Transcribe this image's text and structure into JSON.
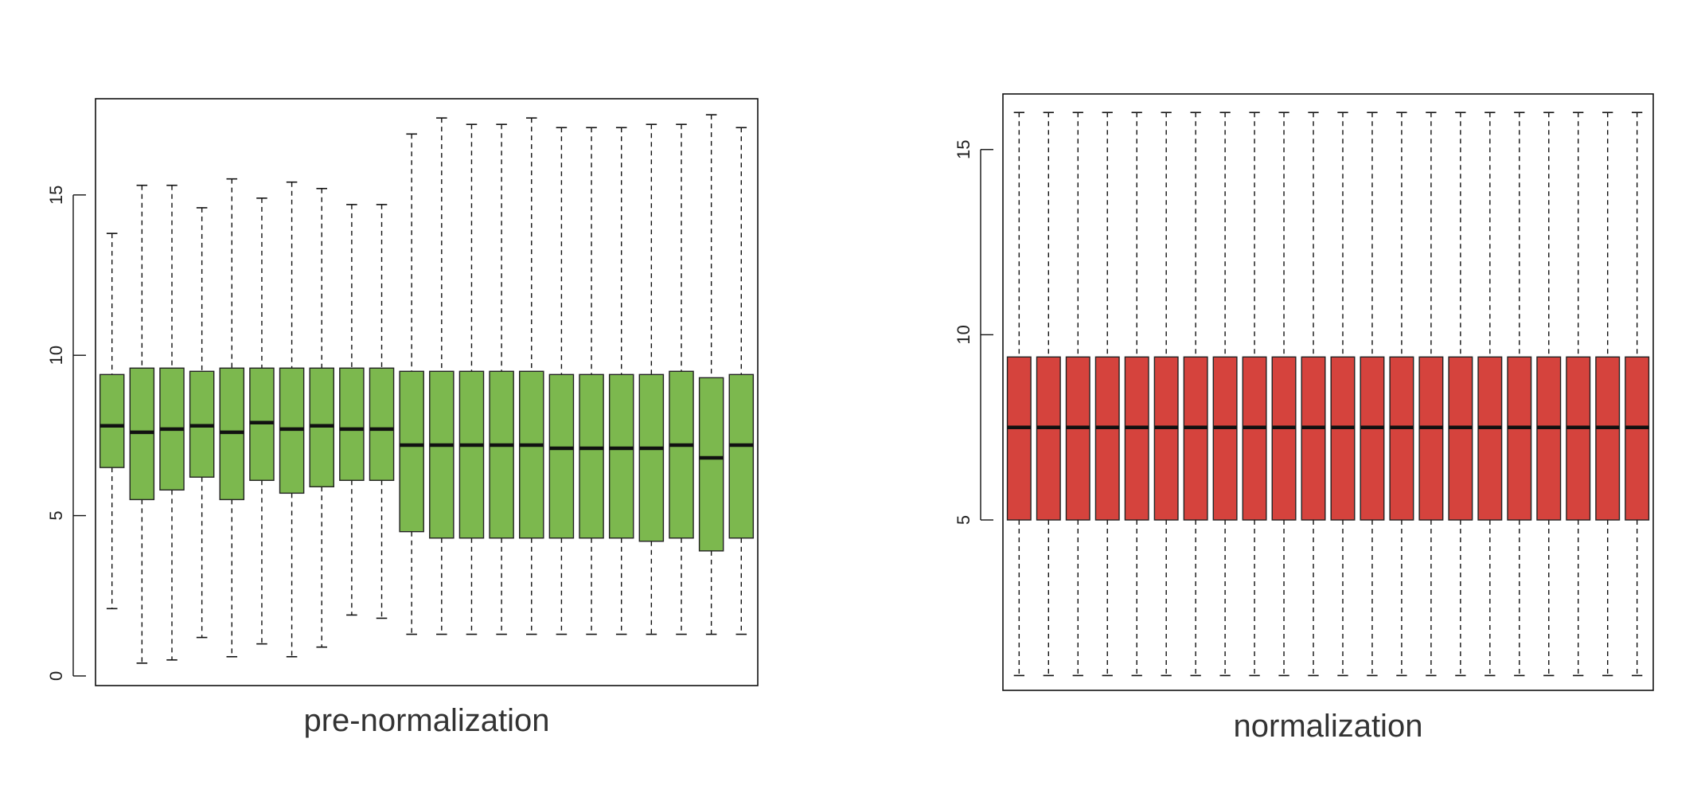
{
  "chart_data": [
    {
      "type": "boxplot",
      "xlabel": "pre-normalization",
      "ylabel": "",
      "yticks": [
        "0",
        "5",
        "10",
        "15"
      ],
      "ylim": [
        -0.3,
        18
      ],
      "grid": false,
      "fill_color": "#7cb84e",
      "boxes": [
        {
          "whisker_low": 2.1,
          "q1": 6.5,
          "median": 7.8,
          "q3": 9.4,
          "whisker_high": 13.8
        },
        {
          "whisker_low": 0.4,
          "q1": 5.5,
          "median": 7.6,
          "q3": 9.6,
          "whisker_high": 15.3
        },
        {
          "whisker_low": 0.5,
          "q1": 5.8,
          "median": 7.7,
          "q3": 9.6,
          "whisker_high": 15.3
        },
        {
          "whisker_low": 1.2,
          "q1": 6.2,
          "median": 7.8,
          "q3": 9.5,
          "whisker_high": 14.6
        },
        {
          "whisker_low": 0.6,
          "q1": 5.5,
          "median": 7.6,
          "q3": 9.6,
          "whisker_high": 15.5
        },
        {
          "whisker_low": 1.0,
          "q1": 6.1,
          "median": 7.9,
          "q3": 9.6,
          "whisker_high": 14.9
        },
        {
          "whisker_low": 0.6,
          "q1": 5.7,
          "median": 7.7,
          "q3": 9.6,
          "whisker_high": 15.4
        },
        {
          "whisker_low": 0.9,
          "q1": 5.9,
          "median": 7.8,
          "q3": 9.6,
          "whisker_high": 15.2
        },
        {
          "whisker_low": 1.9,
          "q1": 6.1,
          "median": 7.7,
          "q3": 9.6,
          "whisker_high": 14.7
        },
        {
          "whisker_low": 1.8,
          "q1": 6.1,
          "median": 7.7,
          "q3": 9.6,
          "whisker_high": 14.7
        },
        {
          "whisker_low": 1.3,
          "q1": 4.5,
          "median": 7.2,
          "q3": 9.5,
          "whisker_high": 16.9
        },
        {
          "whisker_low": 1.3,
          "q1": 4.3,
          "median": 7.2,
          "q3": 9.5,
          "whisker_high": 17.4
        },
        {
          "whisker_low": 1.3,
          "q1": 4.3,
          "median": 7.2,
          "q3": 9.5,
          "whisker_high": 17.2
        },
        {
          "whisker_low": 1.3,
          "q1": 4.3,
          "median": 7.2,
          "q3": 9.5,
          "whisker_high": 17.2
        },
        {
          "whisker_low": 1.3,
          "q1": 4.3,
          "median": 7.2,
          "q3": 9.5,
          "whisker_high": 17.4
        },
        {
          "whisker_low": 1.3,
          "q1": 4.3,
          "median": 7.1,
          "q3": 9.4,
          "whisker_high": 17.1
        },
        {
          "whisker_low": 1.3,
          "q1": 4.3,
          "median": 7.1,
          "q3": 9.4,
          "whisker_high": 17.1
        },
        {
          "whisker_low": 1.3,
          "q1": 4.3,
          "median": 7.1,
          "q3": 9.4,
          "whisker_high": 17.1
        },
        {
          "whisker_low": 1.3,
          "q1": 4.2,
          "median": 7.1,
          "q3": 9.4,
          "whisker_high": 17.2
        },
        {
          "whisker_low": 1.3,
          "q1": 4.3,
          "median": 7.2,
          "q3": 9.5,
          "whisker_high": 17.2
        },
        {
          "whisker_low": 1.3,
          "q1": 3.9,
          "median": 6.8,
          "q3": 9.3,
          "whisker_high": 17.5
        },
        {
          "whisker_low": 1.3,
          "q1": 4.3,
          "median": 7.2,
          "q3": 9.4,
          "whisker_high": 17.1
        }
      ]
    },
    {
      "type": "boxplot",
      "xlabel": "normalization",
      "ylabel": "",
      "yticks": [
        "5",
        "10",
        "15"
      ],
      "ylim": [
        0.4,
        16.5
      ],
      "grid": false,
      "fill_color": "#d5433d",
      "boxes": [
        {
          "whisker_low": 0.8,
          "q1": 5.0,
          "median": 7.5,
          "q3": 9.4,
          "whisker_high": 16.0
        },
        {
          "whisker_low": 0.8,
          "q1": 5.0,
          "median": 7.5,
          "q3": 9.4,
          "whisker_high": 16.0
        },
        {
          "whisker_low": 0.8,
          "q1": 5.0,
          "median": 7.5,
          "q3": 9.4,
          "whisker_high": 16.0
        },
        {
          "whisker_low": 0.8,
          "q1": 5.0,
          "median": 7.5,
          "q3": 9.4,
          "whisker_high": 16.0
        },
        {
          "whisker_low": 0.8,
          "q1": 5.0,
          "median": 7.5,
          "q3": 9.4,
          "whisker_high": 16.0
        },
        {
          "whisker_low": 0.8,
          "q1": 5.0,
          "median": 7.5,
          "q3": 9.4,
          "whisker_high": 16.0
        },
        {
          "whisker_low": 0.8,
          "q1": 5.0,
          "median": 7.5,
          "q3": 9.4,
          "whisker_high": 16.0
        },
        {
          "whisker_low": 0.8,
          "q1": 5.0,
          "median": 7.5,
          "q3": 9.4,
          "whisker_high": 16.0
        },
        {
          "whisker_low": 0.8,
          "q1": 5.0,
          "median": 7.5,
          "q3": 9.4,
          "whisker_high": 16.0
        },
        {
          "whisker_low": 0.8,
          "q1": 5.0,
          "median": 7.5,
          "q3": 9.4,
          "whisker_high": 16.0
        },
        {
          "whisker_low": 0.8,
          "q1": 5.0,
          "median": 7.5,
          "q3": 9.4,
          "whisker_high": 16.0
        },
        {
          "whisker_low": 0.8,
          "q1": 5.0,
          "median": 7.5,
          "q3": 9.4,
          "whisker_high": 16.0
        },
        {
          "whisker_low": 0.8,
          "q1": 5.0,
          "median": 7.5,
          "q3": 9.4,
          "whisker_high": 16.0
        },
        {
          "whisker_low": 0.8,
          "q1": 5.0,
          "median": 7.5,
          "q3": 9.4,
          "whisker_high": 16.0
        },
        {
          "whisker_low": 0.8,
          "q1": 5.0,
          "median": 7.5,
          "q3": 9.4,
          "whisker_high": 16.0
        },
        {
          "whisker_low": 0.8,
          "q1": 5.0,
          "median": 7.5,
          "q3": 9.4,
          "whisker_high": 16.0
        },
        {
          "whisker_low": 0.8,
          "q1": 5.0,
          "median": 7.5,
          "q3": 9.4,
          "whisker_high": 16.0
        },
        {
          "whisker_low": 0.8,
          "q1": 5.0,
          "median": 7.5,
          "q3": 9.4,
          "whisker_high": 16.0
        },
        {
          "whisker_low": 0.8,
          "q1": 5.0,
          "median": 7.5,
          "q3": 9.4,
          "whisker_high": 16.0
        },
        {
          "whisker_low": 0.8,
          "q1": 5.0,
          "median": 7.5,
          "q3": 9.4,
          "whisker_high": 16.0
        },
        {
          "whisker_low": 0.8,
          "q1": 5.0,
          "median": 7.5,
          "q3": 9.4,
          "whisker_high": 16.0
        },
        {
          "whisker_low": 0.8,
          "q1": 5.0,
          "median": 7.5,
          "q3": 9.4,
          "whisker_high": 16.0
        }
      ]
    }
  ]
}
